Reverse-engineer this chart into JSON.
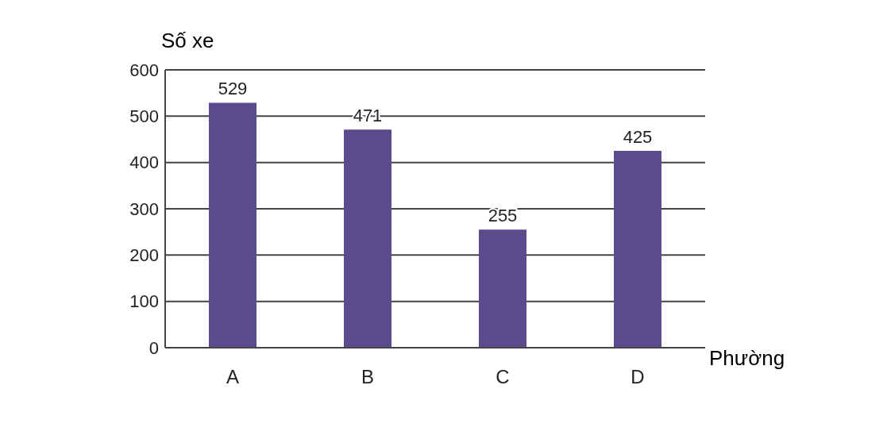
{
  "chart_data": {
    "type": "bar",
    "xlabel": "Phường",
    "ylabel": "Số xe",
    "categories": [
      "A",
      "B",
      "C",
      "D"
    ],
    "values": [
      529,
      471,
      255,
      425
    ],
    "color": "#5b4a8c",
    "ylim": [
      0,
      600
    ],
    "yticks": [
      0,
      100,
      200,
      300,
      400,
      500,
      600
    ],
    "grid": "y",
    "data_labels": true
  }
}
